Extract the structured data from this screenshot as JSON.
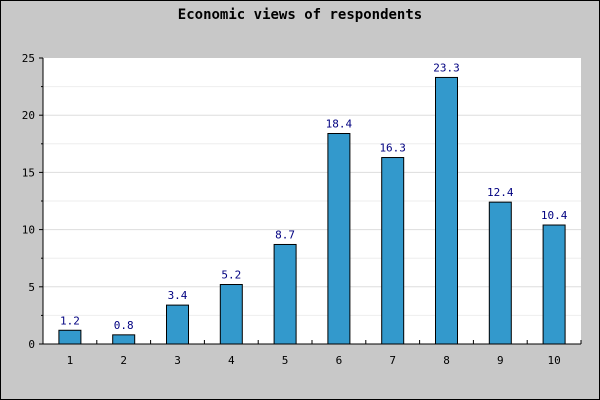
{
  "chart_data": {
    "type": "bar",
    "title": "Economic views of respondents",
    "xlabel": "",
    "ylabel": "",
    "categories": [
      "1",
      "2",
      "3",
      "4",
      "5",
      "6",
      "7",
      "8",
      "9",
      "10"
    ],
    "values": [
      1.2,
      0.8,
      3.4,
      5.2,
      8.7,
      18.4,
      16.3,
      23.3,
      12.4,
      10.4
    ],
    "data_labels": [
      "1.2",
      "0.8",
      "3.4",
      "5.2",
      "8.7",
      "18.4",
      "16.3",
      "23.3",
      "12.4",
      "10.4"
    ],
    "ylim": [
      0,
      25
    ],
    "yticks": [
      0,
      5,
      10,
      15,
      20,
      25
    ],
    "grid": true,
    "legend": "none",
    "colors": {
      "bar": "#3399cc",
      "bar_stroke": "#000000",
      "plot_bg": "#ffffff",
      "outer_bg": "#c8c8c8",
      "grid": "#dddddd",
      "data_label": "#000080"
    }
  }
}
